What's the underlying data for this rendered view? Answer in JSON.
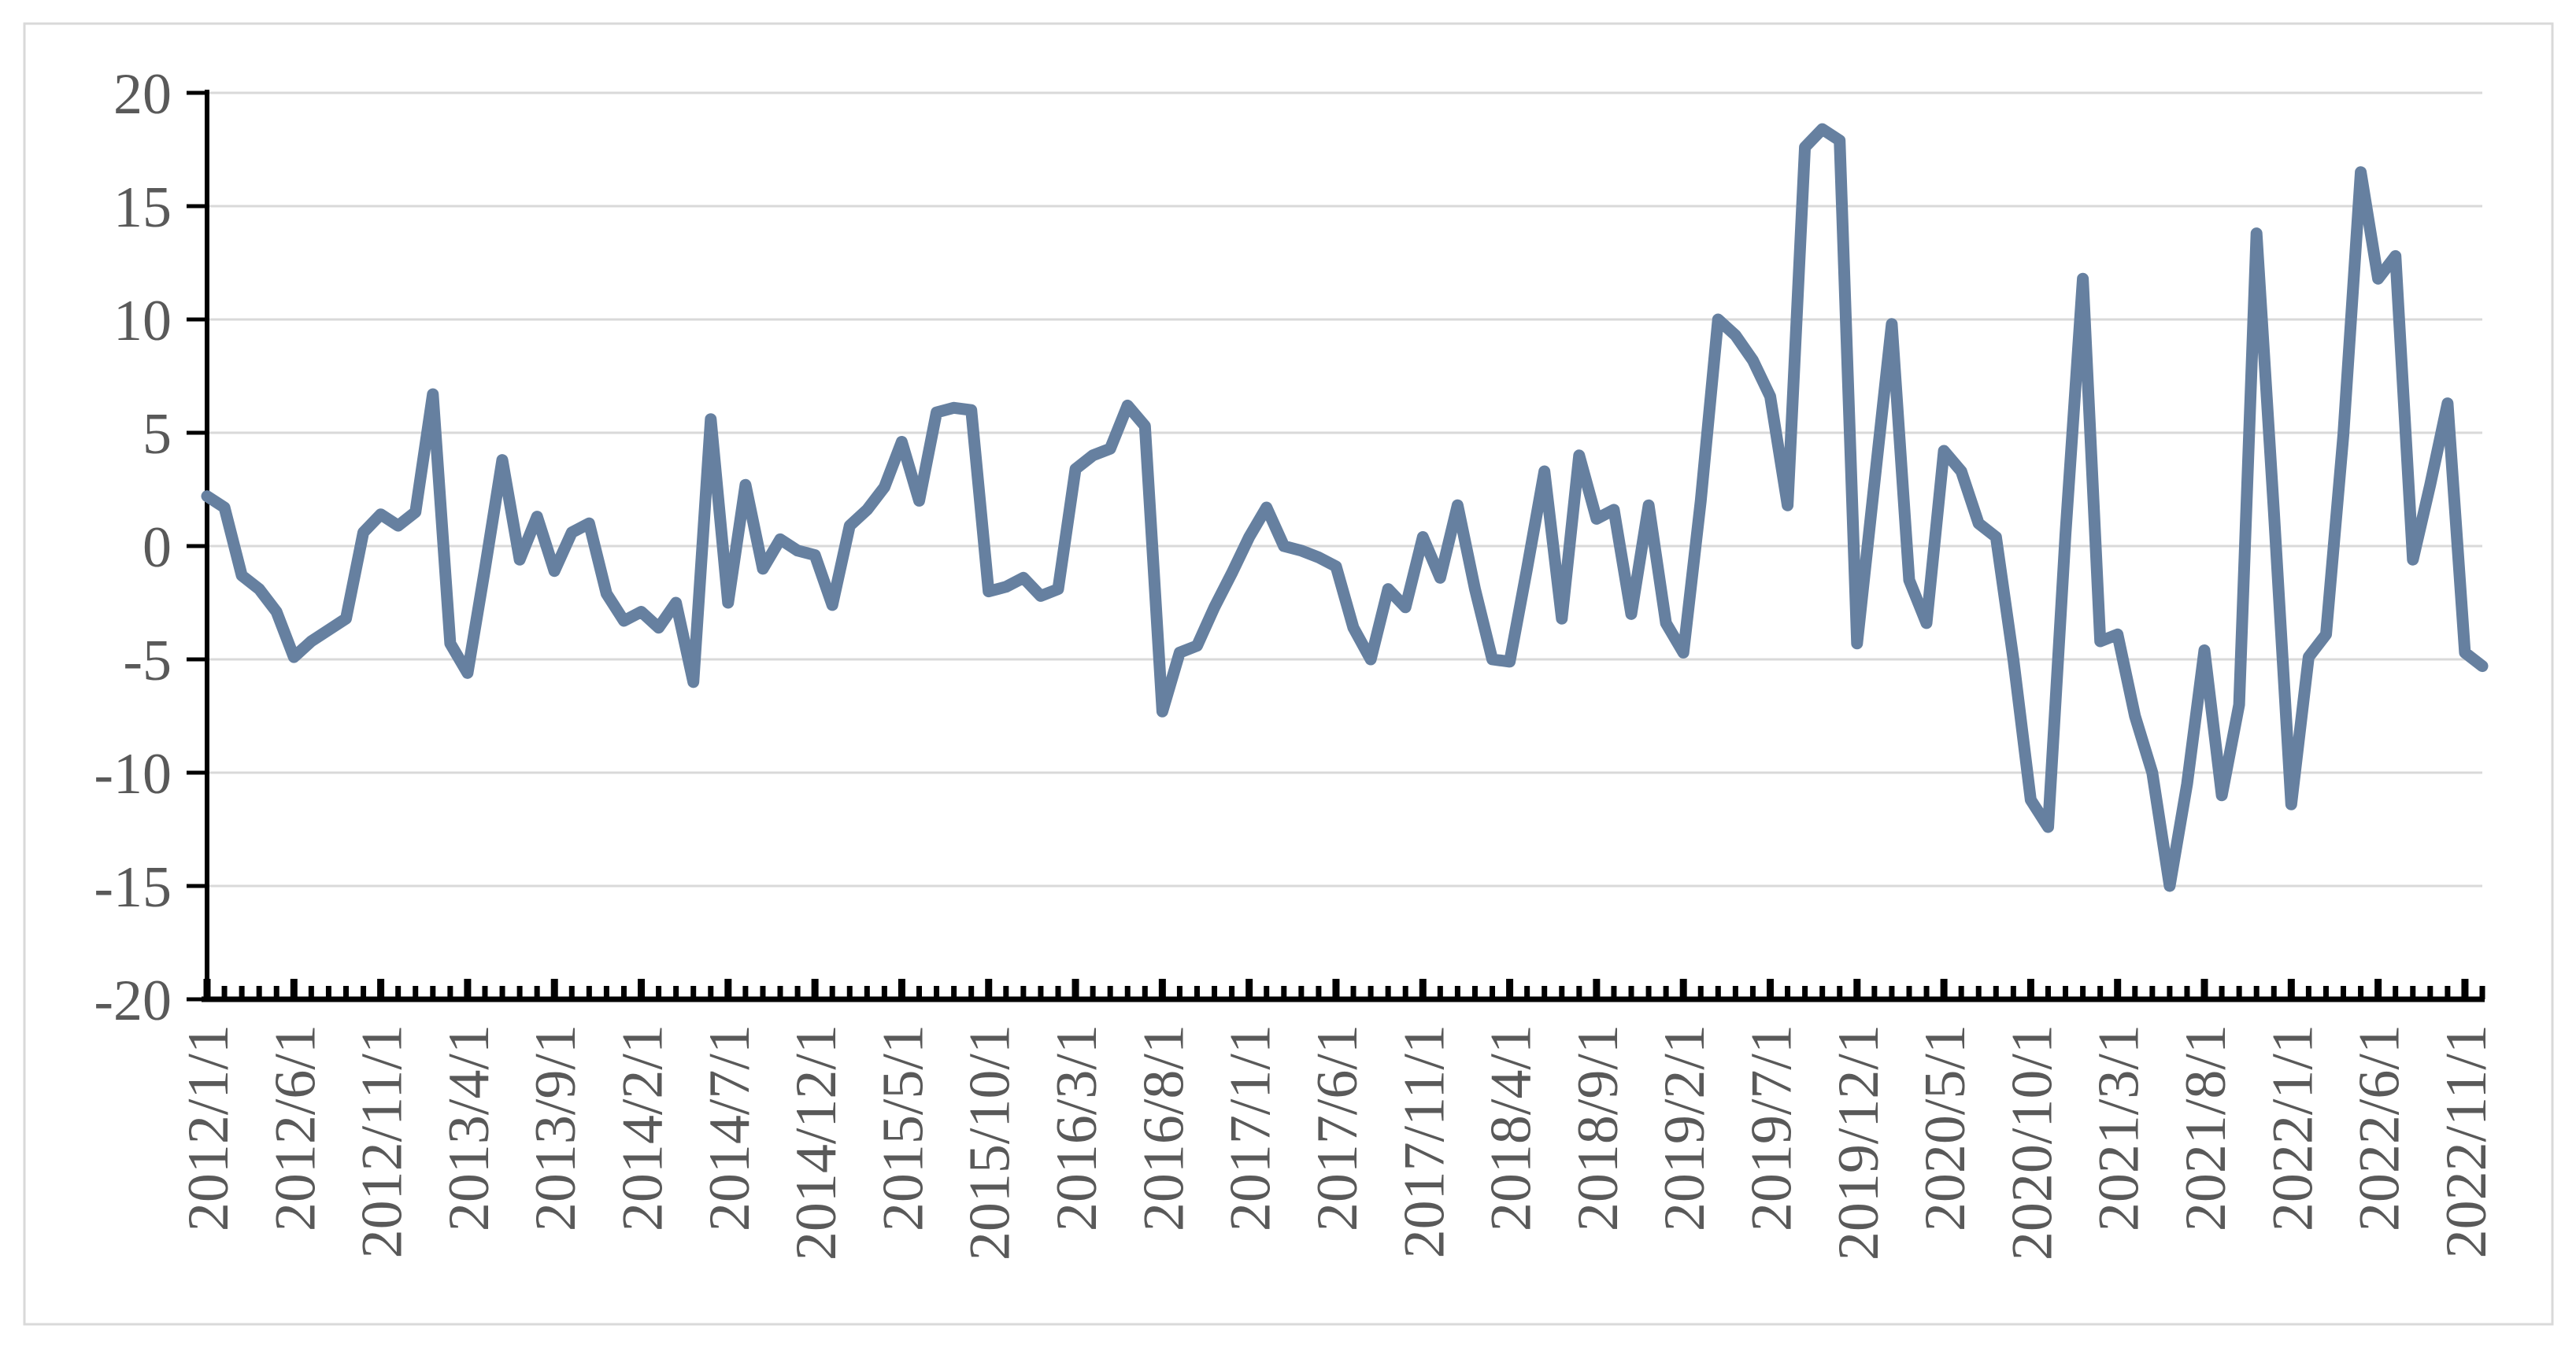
{
  "chart_data": {
    "type": "line",
    "title": "",
    "xlabel": "",
    "ylabel": "",
    "grid": true,
    "legend": "none",
    "ylim": [
      -20,
      20
    ],
    "y_tick_step": 5,
    "y_tick_labels": [
      "20",
      "15",
      "10",
      "5",
      "0",
      "-5",
      "-10",
      "-15",
      "-20"
    ],
    "y_tick_values": [
      20,
      15,
      10,
      5,
      0,
      -5,
      -10,
      -15,
      -20
    ],
    "x_label_every_n_months": 5,
    "x_tick_labels": [
      "2012/1/1",
      "2012/6/1",
      "2012/11/1",
      "2013/4/1",
      "2013/9/1",
      "2014/2/1",
      "2014/7/1",
      "2014/12/1",
      "2015/5/1",
      "2015/10/1",
      "2016/3/1",
      "2016/8/1",
      "2017/1/1",
      "2017/6/1",
      "2017/11/1",
      "2018/4/1",
      "2018/9/1",
      "2019/2/1",
      "2019/7/1",
      "2019/12/1",
      "2020/5/1",
      "2020/10/1",
      "2021/3/1",
      "2021/8/1",
      "2022/1/1",
      "2022/6/1",
      "2022/11/1"
    ],
    "x_months": [
      "2012/1",
      "2012/2",
      "2012/3",
      "2012/4",
      "2012/5",
      "2012/6",
      "2012/7",
      "2012/8",
      "2012/9",
      "2012/10",
      "2012/11",
      "2012/12",
      "2013/1",
      "2013/2",
      "2013/3",
      "2013/4",
      "2013/5",
      "2013/6",
      "2013/7",
      "2013/8",
      "2013/9",
      "2013/10",
      "2013/11",
      "2013/12",
      "2014/1",
      "2014/2",
      "2014/3",
      "2014/4",
      "2014/5",
      "2014/6",
      "2014/7",
      "2014/8",
      "2014/9",
      "2014/10",
      "2014/11",
      "2014/12",
      "2015/1",
      "2015/2",
      "2015/3",
      "2015/4",
      "2015/5",
      "2015/6",
      "2015/7",
      "2015/8",
      "2015/9",
      "2015/10",
      "2015/11",
      "2015/12",
      "2016/1",
      "2016/2",
      "2016/3",
      "2016/4",
      "2016/5",
      "2016/6",
      "2016/7",
      "2016/8",
      "2016/9",
      "2016/10",
      "2016/11",
      "2016/12",
      "2017/1",
      "2017/2",
      "2017/3",
      "2017/4",
      "2017/5",
      "2017/6",
      "2017/7",
      "2017/8",
      "2017/9",
      "2017/10",
      "2017/11",
      "2017/12",
      "2018/1",
      "2018/2",
      "2018/3",
      "2018/4",
      "2018/5",
      "2018/6",
      "2018/7",
      "2018/8",
      "2018/9",
      "2018/10",
      "2018/11",
      "2018/12",
      "2019/1",
      "2019/2",
      "2019/3",
      "2019/4",
      "2019/5",
      "2019/6",
      "2019/7",
      "2019/8",
      "2019/9",
      "2019/10",
      "2019/11",
      "2019/12",
      "2020/1",
      "2020/2",
      "2020/3",
      "2020/4",
      "2020/5",
      "2020/6",
      "2020/7",
      "2020/8",
      "2020/9",
      "2020/10",
      "2020/11",
      "2020/12",
      "2021/1",
      "2021/2",
      "2021/3",
      "2021/4",
      "2021/5",
      "2021/6",
      "2021/7",
      "2021/8",
      "2021/9",
      "2021/10",
      "2021/11",
      "2021/12",
      "2022/1",
      "2022/2",
      "2022/3",
      "2022/4",
      "2022/5",
      "2022/6",
      "2022/7",
      "2022/8",
      "2022/9",
      "2022/10",
      "2022/11",
      "2022/12"
    ],
    "values": [
      2.2,
      1.7,
      -1.3,
      -1.9,
      -2.9,
      -4.9,
      -4.2,
      -3.7,
      -3.2,
      0.6,
      1.4,
      0.9,
      1.5,
      6.7,
      -4.3,
      -5.6,
      -1.0,
      3.8,
      -0.6,
      1.3,
      -1.1,
      0.6,
      1.0,
      -2.1,
      -3.3,
      -2.9,
      -3.6,
      -2.5,
      -6.0,
      5.6,
      -2.5,
      2.7,
      -1.0,
      0.3,
      -0.2,
      -0.4,
      -2.6,
      0.9,
      1.6,
      2.6,
      4.6,
      2.0,
      5.9,
      6.1,
      6.0,
      -2.0,
      -1.8,
      -1.4,
      -2.2,
      -1.9,
      3.4,
      4.0,
      4.3,
      6.2,
      5.3,
      -7.3,
      -4.7,
      -4.4,
      -2.7,
      -1.2,
      0.4,
      1.7,
      0.0,
      -0.2,
      -0.5,
      -0.9,
      -3.6,
      -5.0,
      -1.9,
      -2.7,
      0.4,
      -1.4,
      1.8,
      -1.9,
      -5.0,
      -5.1,
      -1.0,
      3.3,
      -3.2,
      4.0,
      1.2,
      1.6,
      -3.0,
      1.8,
      -3.4,
      -4.7,
      2.0,
      10.0,
      9.3,
      8.2,
      6.6,
      1.8,
      17.6,
      18.4,
      17.9,
      -4.3,
      2.8,
      9.8,
      -1.5,
      -3.4,
      4.2,
      3.3,
      1.0,
      0.4,
      -5.0,
      -11.2,
      -12.4,
      0.5,
      11.8,
      -4.2,
      -3.9,
      -7.5,
      -10.0,
      -15.0,
      -10.5,
      -4.6,
      -11.0,
      -7.0,
      13.8,
      1.5,
      -11.4,
      -4.9,
      -3.9,
      4.9,
      16.5,
      11.8,
      12.8,
      -0.6,
      2.7,
      6.3,
      -4.7,
      -5.3
    ],
    "colors": {
      "line": "#6680A0",
      "grid": "#D9D9D9",
      "axis": "#000000",
      "labels": "#595959",
      "border": "#D9D9D9",
      "background": "#FFFFFF"
    }
  }
}
